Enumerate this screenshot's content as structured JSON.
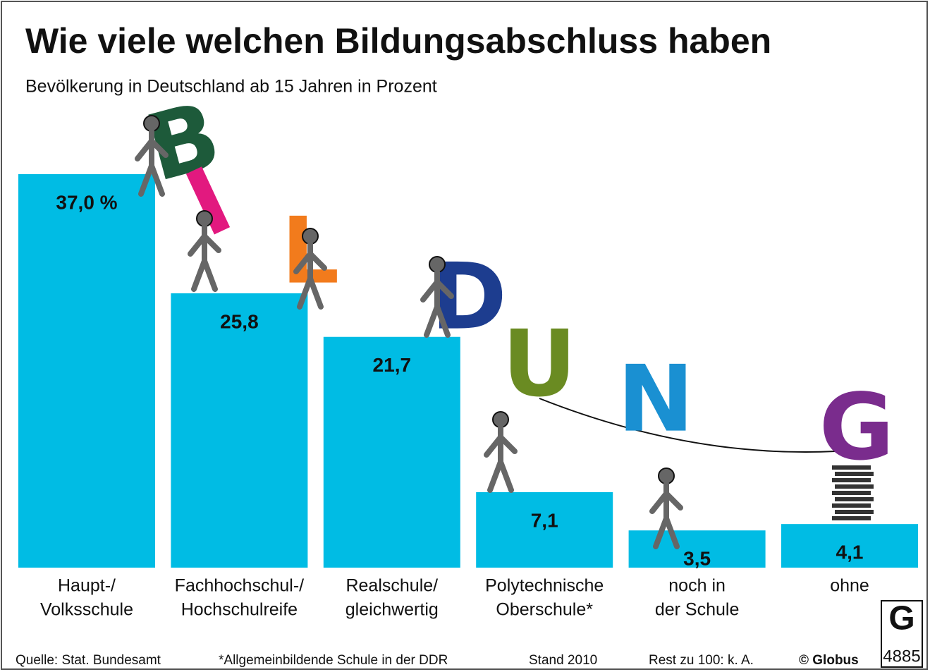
{
  "chart_data": {
    "type": "bar",
    "title": "Wie viele welchen Bildungsabschluss haben",
    "subtitle": "Bevölkerung in Deutschland ab 15 Jahren in Prozent",
    "categories": [
      [
        "Haupt-/",
        "Volksschule"
      ],
      [
        "Fachhochschul-/",
        "Hochschulreife"
      ],
      [
        "Realschule/",
        "gleichwertig"
      ],
      [
        "Polytechnische",
        "Oberschule*"
      ],
      [
        "noch in",
        "der Schule"
      ],
      [
        "ohne"
      ]
    ],
    "values": [
      37.0,
      25.8,
      21.7,
      7.1,
      3.5,
      4.1
    ],
    "value_labels": [
      "37,0 %",
      "25,8",
      "21,7",
      "7,1",
      "3,5",
      "4,1"
    ],
    "color": "#00bce4",
    "illustration_letters": [
      {
        "text": "B",
        "color": "#1d5a3a"
      },
      {
        "text": "I",
        "color": "#e2197f"
      },
      {
        "text": "L",
        "color": "#f27b1c"
      },
      {
        "text": "D",
        "color": "#1d3d8f"
      },
      {
        "text": "U",
        "color": "#6a8b22"
      },
      {
        "text": "N",
        "color": "#1a90d2"
      },
      {
        "text": "G",
        "color": "#7a2c8d"
      }
    ],
    "footer": {
      "source": "Quelle: Stat. Bundesamt",
      "note": "*Allgemeinbildende Schule in der DDR",
      "date": "Stand 2010",
      "rest": "Rest zu 100: k. A.",
      "copyright": "© Globus",
      "logo_letter": "G",
      "number": "4885"
    }
  }
}
